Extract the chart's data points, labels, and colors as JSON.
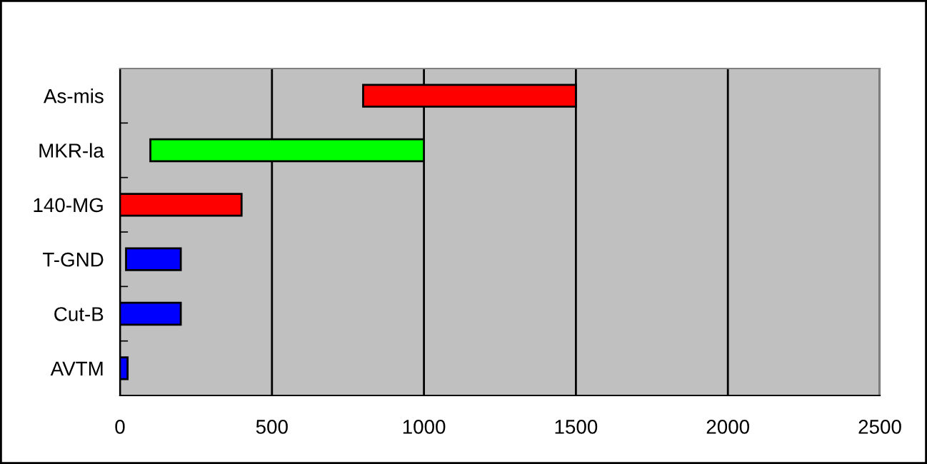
{
  "chart_data": {
    "type": "bar",
    "orientation": "horizontal",
    "categories": [
      "As-mis",
      "MKR-la",
      "140-MG",
      "T-GND",
      "Cut-B",
      "AVTM"
    ],
    "base": [
      800,
      100,
      0,
      20,
      0,
      0
    ],
    "values": [
      700,
      900,
      400,
      180,
      200,
      25
    ],
    "colors": [
      "#ff0000",
      "#00ff00",
      "#ff0000",
      "#0000ff",
      "#0000ff",
      "#0000ff"
    ],
    "xlim": [
      0,
      2500
    ],
    "xticks": [
      0,
      500,
      1000,
      1500,
      2000,
      2500
    ],
    "grid": "x",
    "legend": false
  }
}
